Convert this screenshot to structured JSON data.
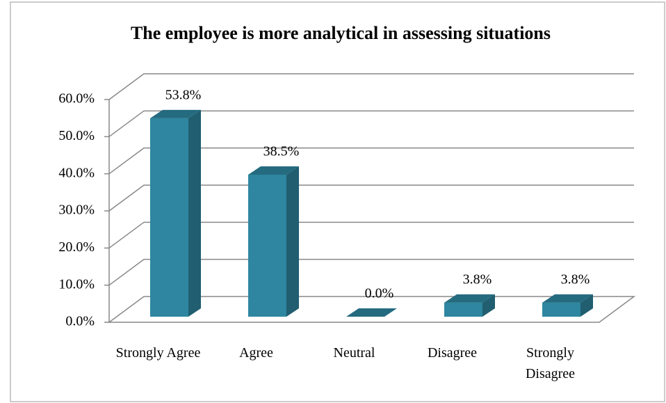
{
  "chart_data": {
    "type": "bar3d",
    "title": "The employee is more analytical in assessing situations",
    "categories": [
      "Strongly Agree",
      "Agree",
      "Neutral",
      "Disagree",
      "Strongly Disagree"
    ],
    "values": [
      53.8,
      38.5,
      0,
      3.8,
      3.8
    ],
    "value_labels": [
      "53.8%",
      "38.5%",
      "0.0%",
      "3.8%",
      "3.8%"
    ],
    "color": "#2e86a0",
    "ylim": [
      0,
      60
    ],
    "yticks": [
      {
        "value": 0,
        "label": "0.0%"
      },
      {
        "value": 10,
        "label": "10.0%"
      },
      {
        "value": 20,
        "label": "20.0%"
      },
      {
        "value": 30,
        "label": "30.0%"
      },
      {
        "value": 40,
        "label": "40.0%"
      },
      {
        "value": 50,
        "label": "50.0%"
      },
      {
        "value": 60,
        "label": "60.0%"
      }
    ],
    "grid": true
  }
}
